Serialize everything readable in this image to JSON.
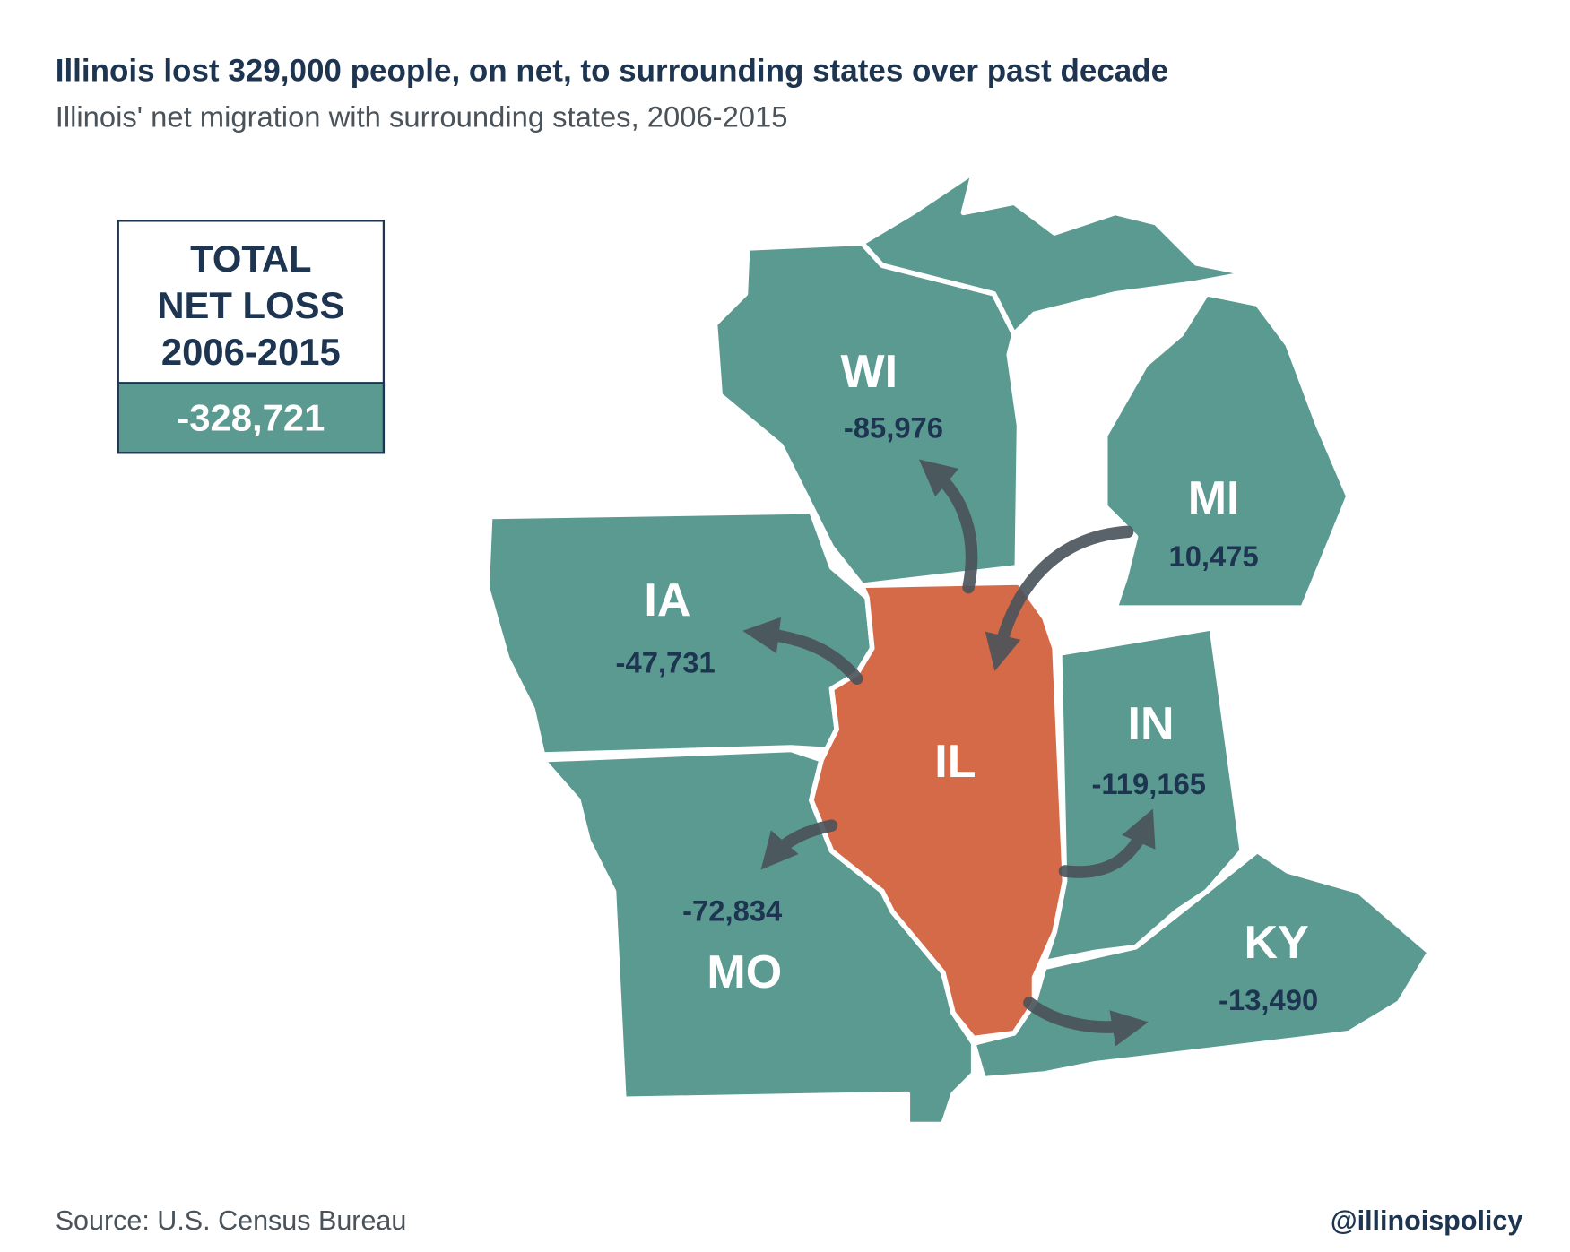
{
  "header": {
    "title": "Illinois lost 329,000 people, on net, to surrounding states over past decade",
    "subtitle": "Illinois' net migration with surrounding states, 2006-2015"
  },
  "total_box": {
    "lines": [
      "TOTAL",
      "NET LOSS",
      "2006-2015"
    ],
    "value": "-328,721"
  },
  "states": [
    {
      "abbr": "WI",
      "value": "-85,976"
    },
    {
      "abbr": "MI",
      "value": "10,475"
    },
    {
      "abbr": "IA",
      "value": "-47,731"
    },
    {
      "abbr": "IL"
    },
    {
      "abbr": "IN",
      "value": "-119,165"
    },
    {
      "abbr": "MO",
      "value": "-72,834"
    },
    {
      "abbr": "KY",
      "value": "-13,490"
    }
  ],
  "footer": {
    "source": "Source: U.S. Census Bureau",
    "handle": "@illinoispolicy"
  }
}
